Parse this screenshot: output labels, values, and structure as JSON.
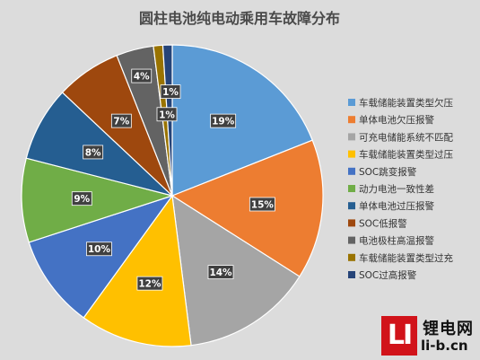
{
  "chart_data": {
    "type": "pie",
    "title": "圆柱电池纯电动乘用车故障分布",
    "slices": [
      {
        "label": "车载储能装置类型欠压",
        "value": 19,
        "display": "19%",
        "color": "#5b9bd5"
      },
      {
        "label": "单体电池欠压报警",
        "value": 15,
        "display": "15%",
        "color": "#ed7d31"
      },
      {
        "label": "可充电储能系统不匹配",
        "value": 14,
        "display": "14%",
        "color": "#a5a5a5"
      },
      {
        "label": "车载储能装置类型过压",
        "value": 12,
        "display": "12%",
        "color": "#ffc000"
      },
      {
        "label": "SOC跳变报警",
        "value": 10,
        "display": "10%",
        "color": "#4472c4"
      },
      {
        "label": "动力电池一致性差",
        "value": 9,
        "display": "9%",
        "color": "#70ad47"
      },
      {
        "label": "单体电池过压报警",
        "value": 8,
        "display": "8%",
        "color": "#255e91"
      },
      {
        "label": "SOC低报警",
        "value": 7,
        "display": "7%",
        "color": "#9e480e"
      },
      {
        "label": "电池极柱高温报警",
        "value": 4,
        "display": "4%",
        "color": "#636363"
      },
      {
        "label": "车载储能装置类型过充",
        "value": 1,
        "display": "1%",
        "color": "#997300"
      },
      {
        "label": "SOC过高报警",
        "value": 1,
        "display": "1%",
        "color": "#264478"
      }
    ],
    "legend_position": "right"
  },
  "watermark": {
    "logo_text": "LI",
    "name": "锂电网",
    "url": "li-b.cn"
  }
}
